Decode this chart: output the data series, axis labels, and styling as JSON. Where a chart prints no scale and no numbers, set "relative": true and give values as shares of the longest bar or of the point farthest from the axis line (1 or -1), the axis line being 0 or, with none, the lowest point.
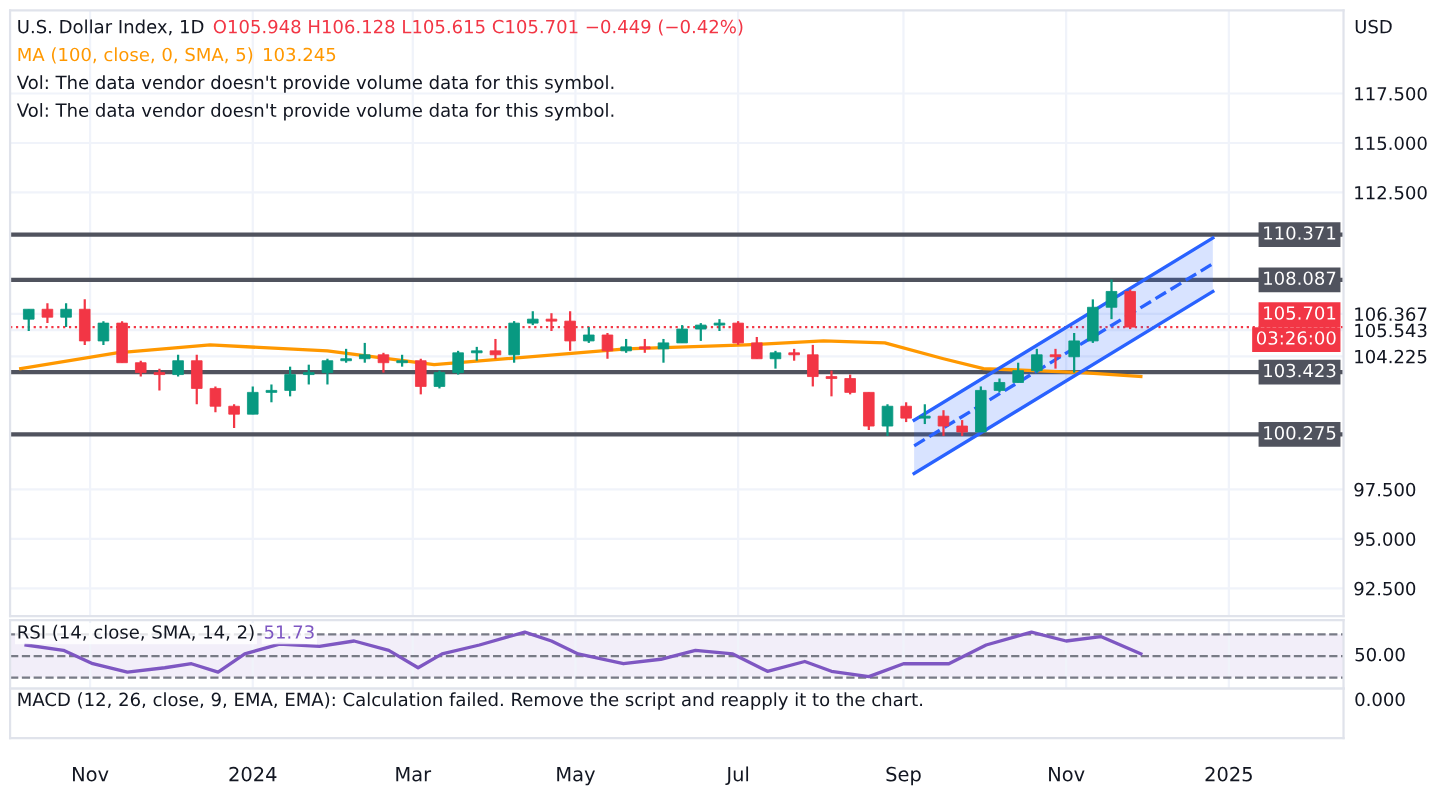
{
  "chart_data": [
    {
      "type": "candlestick",
      "title": "U.S. Dollar Index, 1D",
      "ylabel": "USD",
      "tick_labels": "y",
      "grid": true,
      "legend": "top left",
      "annotations": [
        "O105.948 H106.128 L105.615 C105.701 −0.449 (−0.42%)",
        "103.245",
        "Vol: The data vendor doesn't provide volume data for this symbol.",
        "Vol: The data vendor doesn't provide volume data for this symbol.",
        "03:26:00"
      ],
      "xlim": [
        "2023-10-02",
        "2025-02-13"
      ],
      "xticks": [
        {
          "value": "2023-11-01",
          "label": null
        },
        {
          "value": "2024-01-01",
          "label": null
        },
        {
          "value": "2024-03-01",
          "label": null
        },
        {
          "value": "2024-05-01",
          "label": null
        },
        {
          "value": "2024-07-01",
          "label": null
        },
        {
          "value": "2024-09-01",
          "label": null
        },
        {
          "value": "2024-11-01",
          "label": null
        },
        {
          "value": "2025-01-01",
          "label": null
        }
      ],
      "ylim": [
        91.1,
        121.7
      ],
      "yticks": [
        {
          "value": 92.5,
          "label": "92.500"
        },
        {
          "value": 95,
          "label": "95.000"
        },
        {
          "value": 97.5,
          "label": "97.500"
        },
        {
          "value": 104.225,
          "label": "104.225"
        },
        {
          "value": 105.543,
          "label": "105.543"
        },
        {
          "value": 106.367,
          "label": "106.367"
        },
        {
          "value": 112.5,
          "label": "112.500"
        },
        {
          "value": 115,
          "label": "115.000"
        },
        {
          "value": 117.5,
          "label": "117.500"
        }
      ],
      "x": [
        "2023-10-09",
        "2023-10-16",
        "2023-10-23",
        "2023-10-30",
        "2023-11-06",
        "2023-11-13",
        "2023-11-20",
        "2023-11-27",
        "2023-12-04",
        "2023-12-11",
        "2023-12-18",
        "2023-12-25",
        "2024-01-01",
        "2024-01-08",
        "2024-01-15",
        "2024-01-22",
        "2024-01-29",
        "2024-02-05",
        "2024-02-12",
        "2024-02-19",
        "2024-02-26",
        "2024-03-04",
        "2024-03-11",
        "2024-03-18",
        "2024-03-25",
        "2024-04-01",
        "2024-04-08",
        "2024-04-15",
        "2024-04-22",
        "2024-04-29",
        "2024-05-06",
        "2024-05-13",
        "2024-05-20",
        "2024-05-27",
        "2024-06-03",
        "2024-06-10",
        "2024-06-17",
        "2024-06-24",
        "2024-07-01",
        "2024-07-08",
        "2024-07-15",
        "2024-07-22",
        "2024-07-29",
        "2024-08-05",
        "2024-08-12",
        "2024-08-19",
        "2024-08-26",
        "2024-09-02",
        "2024-09-09",
        "2024-09-16",
        "2024-09-23",
        "2024-09-30",
        "2024-10-07",
        "2024-10-14",
        "2024-10-21",
        "2024-10-28",
        "2024-11-04",
        "2024-11-11",
        "2024-11-18",
        "2024-11-25"
      ],
      "ohlc": [
        [
          106.1,
          106.6,
          105.5,
          106.6
        ],
        [
          106.6,
          106.9,
          105.9,
          106.2
        ],
        [
          106.2,
          106.9,
          105.7,
          106.6
        ],
        [
          106.6,
          107.1,
          104.8,
          105.0
        ],
        [
          105.0,
          106.0,
          104.8,
          105.9
        ],
        [
          105.9,
          106.0,
          103.9,
          103.9
        ],
        [
          103.9,
          104.0,
          103.2,
          103.4
        ],
        [
          103.4,
          103.6,
          102.5,
          103.3
        ],
        [
          103.3,
          104.3,
          103.2,
          104.0
        ],
        [
          104.0,
          104.3,
          101.8,
          102.6
        ],
        [
          102.6,
          102.7,
          101.4,
          101.7
        ],
        [
          101.7,
          101.8,
          100.6,
          101.3
        ],
        [
          101.3,
          102.7,
          101.3,
          102.4
        ],
        [
          102.4,
          102.8,
          101.9,
          102.5
        ],
        [
          102.5,
          103.7,
          102.2,
          103.3
        ],
        [
          103.3,
          103.8,
          102.8,
          103.4
        ],
        [
          103.4,
          104.1,
          102.8,
          104.0
        ],
        [
          104.0,
          104.6,
          103.9,
          104.1
        ],
        [
          104.1,
          104.9,
          103.9,
          104.3
        ],
        [
          104.3,
          104.4,
          103.4,
          103.9
        ],
        [
          103.9,
          104.3,
          103.7,
          104.0
        ],
        [
          104.0,
          104.1,
          102.3,
          102.7
        ],
        [
          102.7,
          103.5,
          102.6,
          103.4
        ],
        [
          103.4,
          104.5,
          103.3,
          104.4
        ],
        [
          104.4,
          104.7,
          104.0,
          104.5
        ],
        [
          104.5,
          105.1,
          104.1,
          104.3
        ],
        [
          104.3,
          106.0,
          103.9,
          105.9
        ],
        [
          105.9,
          106.5,
          105.8,
          106.1
        ],
        [
          106.1,
          106.4,
          105.5,
          106.0
        ],
        [
          106.0,
          106.5,
          104.5,
          105.0
        ],
        [
          105.0,
          105.7,
          104.9,
          105.3
        ],
        [
          105.3,
          105.4,
          104.1,
          104.5
        ],
        [
          104.5,
          105.1,
          104.4,
          104.7
        ],
        [
          104.7,
          105.1,
          104.4,
          104.6
        ],
        [
          104.6,
          105.1,
          103.9,
          104.9
        ],
        [
          104.9,
          105.8,
          104.9,
          105.6
        ],
        [
          105.6,
          105.9,
          105.0,
          105.8
        ],
        [
          105.8,
          106.1,
          105.5,
          105.9
        ],
        [
          105.9,
          106.0,
          104.8,
          104.9
        ],
        [
          104.9,
          105.2,
          104.1,
          104.1
        ],
        [
          104.1,
          104.5,
          103.6,
          104.4
        ],
        [
          104.4,
          104.6,
          104.0,
          104.3
        ],
        [
          104.3,
          104.8,
          102.7,
          103.2
        ],
        [
          103.2,
          103.5,
          102.2,
          103.1
        ],
        [
          103.1,
          103.3,
          102.3,
          102.4
        ],
        [
          102.4,
          102.4,
          100.5,
          100.7
        ],
        [
          100.7,
          101.8,
          100.2,
          101.7
        ],
        [
          101.7,
          101.9,
          100.9,
          101.1
        ],
        [
          101.1,
          101.8,
          100.8,
          101.2
        ],
        [
          101.2,
          101.5,
          100.2,
          100.7
        ],
        [
          100.7,
          101.0,
          100.2,
          100.4
        ],
        [
          100.4,
          102.7,
          100.4,
          102.5
        ],
        [
          102.5,
          103.1,
          102.4,
          102.9
        ],
        [
          102.9,
          103.9,
          102.9,
          103.5
        ],
        [
          103.5,
          104.6,
          103.4,
          104.3
        ],
        [
          104.3,
          104.6,
          103.6,
          104.2
        ],
        [
          104.2,
          105.4,
          103.4,
          105.0
        ],
        [
          105.0,
          107.1,
          104.9,
          106.7
        ],
        [
          106.7,
          108.1,
          106.1,
          107.5
        ],
        [
          107.5,
          107.6,
          105.6,
          105.7
        ]
      ],
      "colors": [
        "#089981",
        "#f23645",
        "#089981",
        "#f23645",
        "#089981",
        "#f23645",
        "#f23645",
        "#f23645",
        "#089981",
        "#f23645",
        "#f23645",
        "#f23645",
        "#089981",
        "#089981",
        "#089981",
        "#089981",
        "#089981",
        "#089981",
        "#089981",
        "#f23645",
        "#089981",
        "#f23645",
        "#089981",
        "#089981",
        "#089981",
        "#f23645",
        "#089981",
        "#089981",
        "#f23645",
        "#f23645",
        "#089981",
        "#f23645",
        "#089981",
        "#f23645",
        "#089981",
        "#089981",
        "#089981",
        "#089981",
        "#f23645",
        "#f23645",
        "#089981",
        "#f23645",
        "#f23645",
        "#f23645",
        "#f23645",
        "#f23645",
        "#089981",
        "#f23645",
        "#089981",
        "#f23645",
        "#f23645",
        "#089981",
        "#089981",
        "#089981",
        "#089981",
        "#f23645",
        "#089981",
        "#089981",
        "#089981",
        "#f23645"
      ],
      "series": [
        {
          "name": "MA (100, close, 0, SMA, 5)",
          "type": "line",
          "color": "#ff9800",
          "line_style": "solid",
          "x": [
            "2023-10-06",
            "2023-11-11",
            "2023-12-16",
            "2024-01-29",
            "2024-03-09",
            "2024-05-20",
            "2024-07-04",
            "2024-08-02",
            "2024-08-25",
            "2024-09-16",
            "2024-10-01",
            "2024-11-07",
            "2024-11-29"
          ],
          "values": [
            103.6,
            104.4,
            104.8,
            104.5,
            103.8,
            104.6,
            104.8,
            105.0,
            104.9,
            104.1,
            103.6,
            103.4,
            103.2
          ]
        },
        {
          "type": "line",
          "color": "#2962ff",
          "line_style": "dashed",
          "x": [
            "2024-09-05",
            "2024-12-26"
          ],
          "values": [
            99.7,
            108.9
          ],
          "lower": [
            98.3,
            107.5
          ],
          "upper": [
            101.0,
            110.2
          ]
        },
        {
          "type": "line",
          "color": "#2962ff",
          "line_style": "solid",
          "x": [
            "2024-09-05",
            "2024-12-26"
          ],
          "values": [
            98.3,
            107.5
          ]
        },
        {
          "type": "line",
          "color": "#2962ff",
          "line_style": "solid",
          "x": [
            "2024-09-05",
            "2024-12-26"
          ],
          "values": [
            101.0,
            110.2
          ]
        }
      ],
      "ref_lines": [
        {
          "axis": "y",
          "value": 110.371,
          "label": "110.371",
          "color": "#50535e",
          "line_style": "solid"
        },
        {
          "axis": "y",
          "value": 108.087,
          "label": "108.087",
          "color": "#50535e",
          "line_style": "solid"
        },
        {
          "axis": "y",
          "value": 105.701,
          "label": "105.701",
          "color": "#f23645",
          "line_style": "dotted"
        },
        {
          "axis": "y",
          "value": 103.423,
          "label": "103.423",
          "color": "#50535e",
          "line_style": "solid"
        },
        {
          "axis": "y",
          "value": 100.275,
          "label": "100.275",
          "color": "#50535e",
          "line_style": "solid"
        }
      ]
    },
    {
      "type": "line",
      "relative": true,
      "title": "RSI (14, close, SMA, 14, 2)",
      "annotations": [
        "51.73",
        "50.00"
      ],
      "tick_labels": "x",
      "grid": "x",
      "xlim": [
        "2023-10-02",
        "2025-02-13"
      ],
      "xticks": [
        {
          "value": "2023-11-01",
          "label": "Nov"
        },
        {
          "value": "2024-01-01",
          "label": "2024"
        },
        {
          "value": "2024-03-01",
          "label": "Mar"
        },
        {
          "value": "2024-05-01",
          "label": "May"
        },
        {
          "value": "2024-07-01",
          "label": "Jul"
        },
        {
          "value": "2024-09-01",
          "label": "Sep"
        },
        {
          "value": "2024-11-01",
          "label": "Nov"
        },
        {
          "value": "2025-01-01",
          "label": "2025"
        }
      ],
      "series": [
        {
          "color": "#7e57c2",
          "x": [
            "2023-10-08",
            "2023-10-22",
            "2023-11-02",
            "2023-11-15",
            "2023-11-29",
            "2023-12-09",
            "2023-12-19",
            "2023-12-29",
            "2024-01-11",
            "2024-01-26",
            "2024-02-08",
            "2024-02-21",
            "2024-03-03",
            "2024-03-12",
            "2024-03-26",
            "2024-04-12",
            "2024-04-22",
            "2024-05-02",
            "2024-05-19",
            "2024-06-02",
            "2024-06-15",
            "2024-06-29",
            "2024-07-12",
            "2024-07-26",
            "2024-08-05",
            "2024-08-19",
            "2024-09-01",
            "2024-09-18",
            "2024-10-02",
            "2024-10-19",
            "2024-11-01",
            "2024-11-14",
            "2024-11-29"
          ],
          "values": [
            0.71,
            0.59,
            0.29,
            0.1,
            0.2,
            0.29,
            0.1,
            0.51,
            0.73,
            0.68,
            0.8,
            0.59,
            0.2,
            0.51,
            0.71,
            1,
            0.8,
            0.51,
            0.29,
            0.39,
            0.59,
            0.51,
            0.12,
            0.34,
            0.12,
            0,
            0.29,
            0.29,
            0.71,
            1,
            0.8,
            0.9,
            0.51
          ]
        }
      ],
      "bands": [
        {
          "axis": "y",
          "from": -0.02,
          "to": 0.95,
          "color": "#7e57c2"
        }
      ],
      "ref_lines": [
        {
          "axis": "y",
          "value": 0.95,
          "color": "#787b86",
          "line_style": "dashed"
        },
        {
          "axis": "y",
          "value": 0.46,
          "color": "#787b86",
          "line_style": "dashed"
        },
        {
          "axis": "y",
          "value": -0.02,
          "color": "#787b86",
          "line_style": "dashed"
        }
      ]
    },
    {
      "type": "other",
      "title": "MACD (12, 26, close, 9, EMA, EMA): Calculation failed. Remove the script and reapply it to the chart.",
      "annotations": [
        "0.000"
      ]
    }
  ]
}
